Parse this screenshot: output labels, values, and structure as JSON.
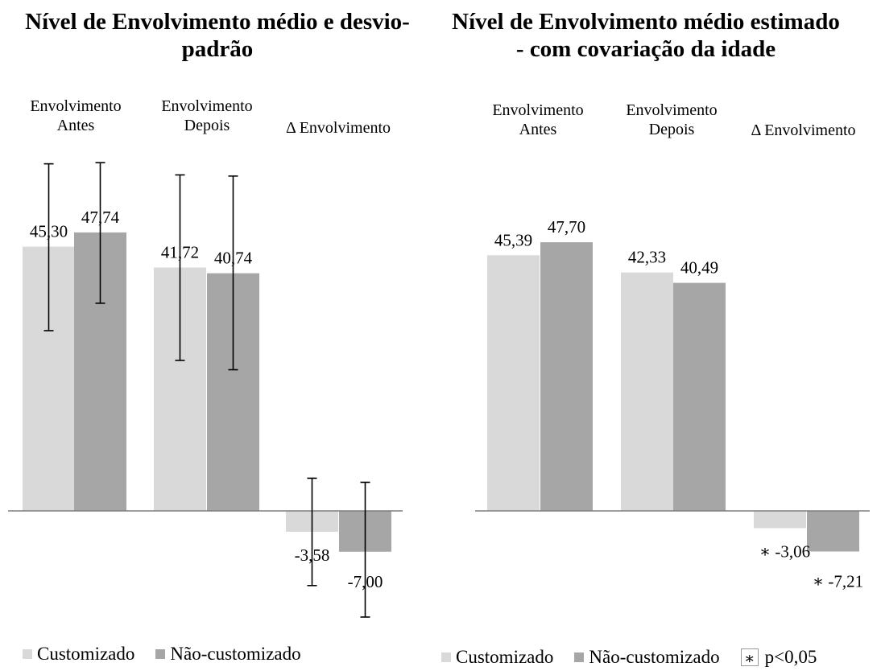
{
  "colors": {
    "customizado": "#d9d9d9",
    "nao_customizado": "#a6a6a6",
    "axis": "#7f7f7f",
    "error_bar": "#000000"
  },
  "chart_data": [
    {
      "type": "bar",
      "title": "Nível de Envolvimento médio e desvio-padrão",
      "categories": [
        "Envolvimento Antes",
        "Envolvimento Depois",
        "Δ Envolvimento"
      ],
      "series": [
        {
          "name": "Customizado",
          "values": [
            45.3,
            41.72,
            -3.58
          ],
          "labels": [
            "45,30",
            "41,72",
            "-3,58"
          ]
        },
        {
          "name": "Não-customizado",
          "values": [
            47.74,
            40.74,
            -7.0
          ],
          "labels": [
            "47,74",
            "40,74",
            "-7,00"
          ]
        }
      ],
      "error_bars": {
        "Customizado": [
          [
            59.5,
            30.9
          ],
          [
            57.6,
            25.8
          ],
          [
            5.6,
            -12.8
          ]
        ],
        "Não-customizado": [
          [
            59.7,
            35.6
          ],
          [
            57.4,
            24.2
          ],
          [
            4.9,
            -18.2
          ]
        ]
      },
      "significance": [
        [
          false,
          false,
          false
        ],
        [
          false,
          false,
          false
        ]
      ],
      "ylim": [
        -21,
        65
      ],
      "legend": {
        "position": "bottom-left",
        "entries": [
          "Customizado",
          "Não-customizado"
        ]
      }
    },
    {
      "type": "bar",
      "title": "Nível de Envolvimento médio estimado - com covariação da idade",
      "categories": [
        "Envolvimento Antes",
        "Envolvimento Depois",
        "Δ Envolvimento"
      ],
      "series": [
        {
          "name": "Customizado",
          "values": [
            45.39,
            42.33,
            -3.06
          ],
          "labels": [
            "45,39",
            "42,33",
            "-3,06"
          ]
        },
        {
          "name": "Não-customizado",
          "values": [
            47.7,
            40.49,
            -7.21
          ],
          "labels": [
            "47,70",
            "40,49",
            "-7,21"
          ]
        }
      ],
      "significance": [
        [
          false,
          false,
          true
        ],
        [
          false,
          false,
          true
        ]
      ],
      "significance_symbol": "∗",
      "ylim": [
        -21,
        65
      ],
      "legend": {
        "position": "bottom-left",
        "entries": [
          "Customizado",
          "Não-customizado",
          "p<0,05"
        ]
      }
    }
  ]
}
